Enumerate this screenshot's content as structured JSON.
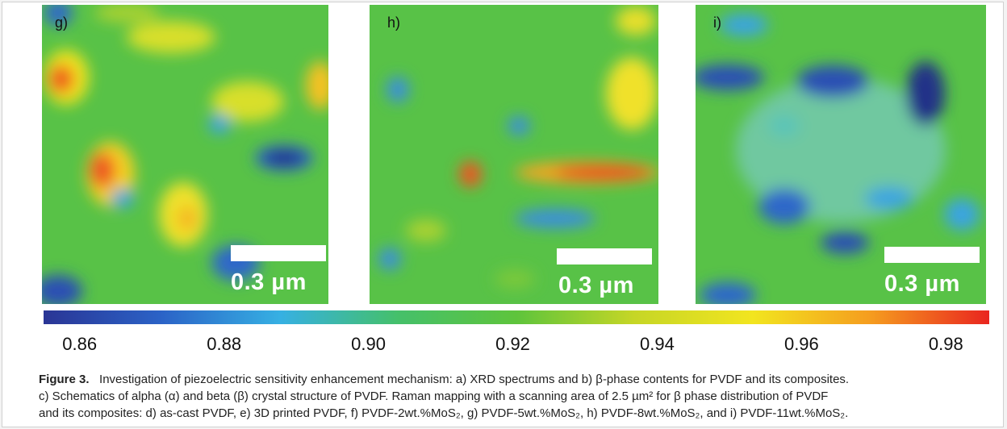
{
  "panels": [
    {
      "label": "g)",
      "scale": "0.3 µm"
    },
    {
      "label": "h)",
      "scale": "0.3 µm"
    },
    {
      "label": "i)",
      "scale": "0.3 µm"
    }
  ],
  "colorbar": {
    "ticks": [
      "0.86",
      "0.88",
      "0.90",
      "0.92",
      "0.94",
      "0.96",
      "0.98"
    ],
    "min": 0.855,
    "max": 0.986,
    "colors": [
      "#2a3595",
      "#2b63c7",
      "#36b0e3",
      "#45c06a",
      "#5ec43c",
      "#c6d626",
      "#f2e51f",
      "#f59c1f",
      "#e9251f"
    ]
  },
  "caption": {
    "label": "Figure 3.",
    "line1": "Investigation of piezoelectric sensitivity enhancement mechanism: a) XRD spectrums and b) β-phase contents for PVDF and its composites.",
    "line2": "c) Schematics of alpha (α) and beta (β) crystal structure of PVDF. Raman mapping with a scanning area of 2.5 µm² for β phase distribution of PVDF",
    "line3": "and its composites: d) as-cast PVDF, e) 3D printed PVDF, f) PVDF-2wt.%MoS₂, g) PVDF-5wt.%MoS₂, h) PVDF-8wt.%MoS₂, and i) PVDF-11wt.%MoS₂."
  }
}
